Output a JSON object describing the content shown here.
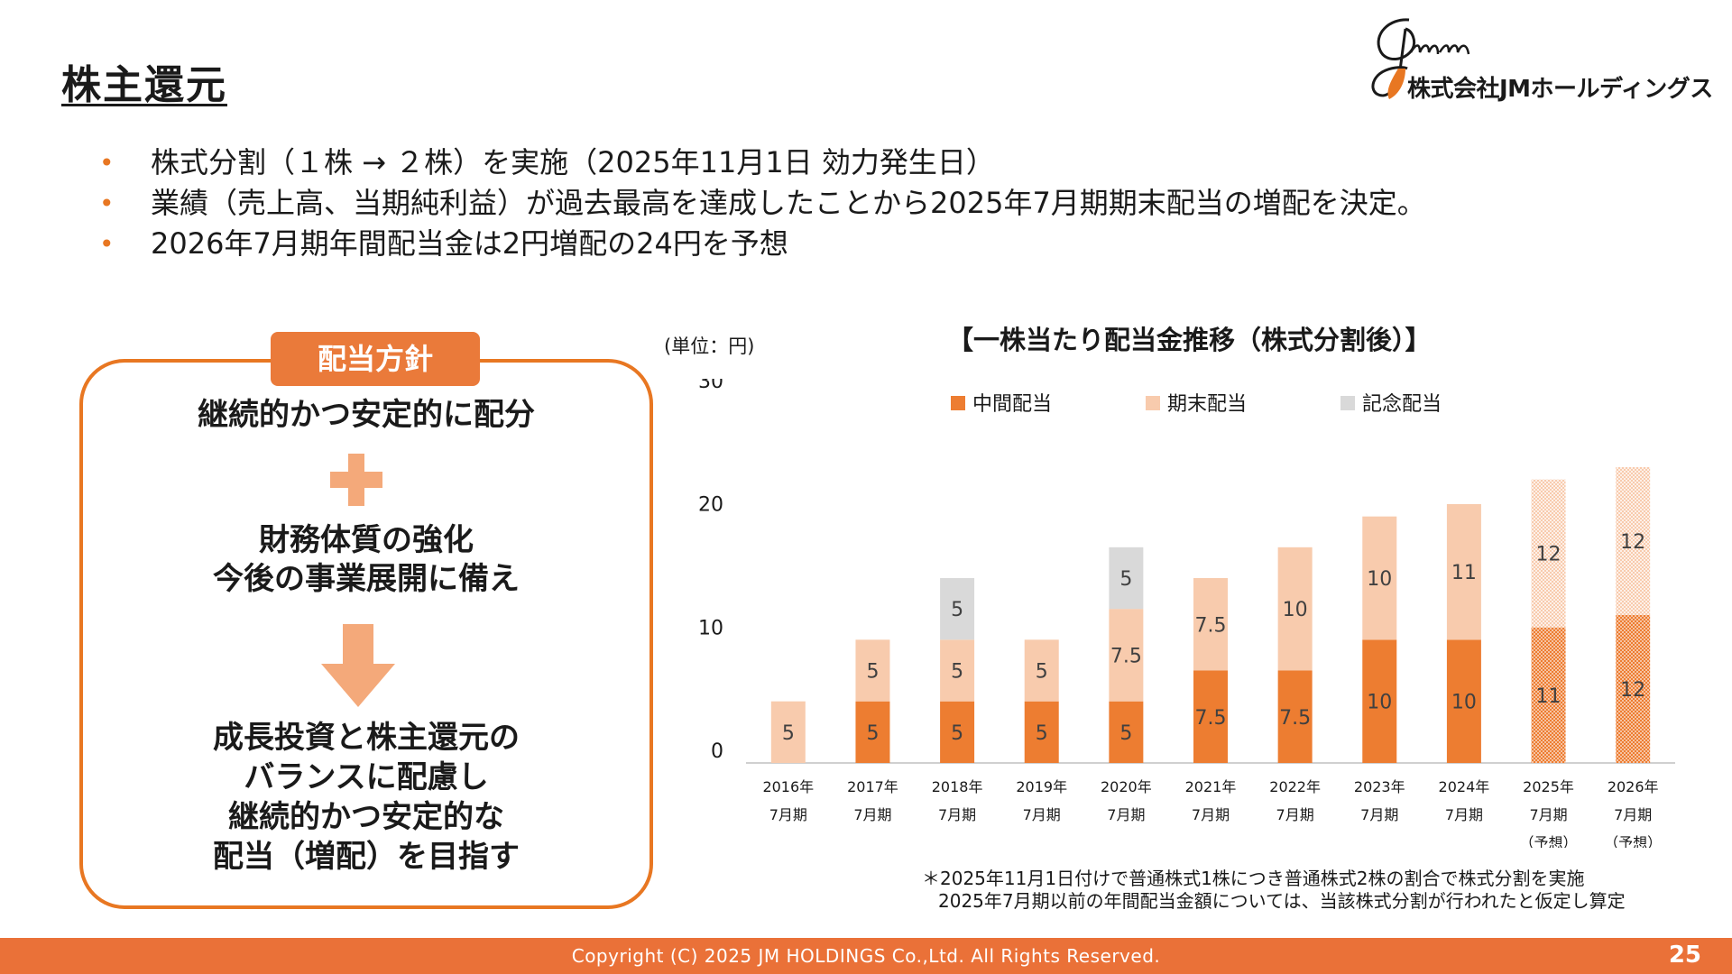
{
  "page": {
    "title": "株主還元",
    "logo_text": "株式会社JMホールディングス",
    "bullets": [
      "株式分割（１株 → ２株）を実施（2025年11月1日 効力発生日）",
      "業績（売上高、当期純利益）が過去最高を達成したことから2025年7月期期末配当の増配を決定。",
      "2026年7月期年間配当金は2円増配の24円を予想"
    ],
    "bullet_marker": "•",
    "footnote_line1": "＊2025年11月1日付けで普通株式1株につき普通株式2株の割合で株式分割を実施",
    "footnote_line2": "2025年7月期以前の年間配当金額については、当該株式分割が行われたと仮定し算定",
    "copyright": "Copyright (C) 2025 JM HOLDINGS Co.,Ltd. All Rights Reserved.",
    "page_number": "25"
  },
  "policy": {
    "tag": "配当方針",
    "line1": "継続的かつ安定的に配分",
    "line2": "財務体質の強化",
    "line3": "今後の事業展開に備え",
    "line4": "成長投資と株主還元の",
    "line5": "バランスに配慮し",
    "line6": "継続的かつ安定的な",
    "line7": "配当（増配）を目指す"
  },
  "colors": {
    "accent": "#e87722",
    "interim": "#ed7d31",
    "year_end": "#f8cbad",
    "commemorative": "#d9d9d9",
    "footer": "#ea7138"
  },
  "chart_data": {
    "type": "bar",
    "stacked": true,
    "title": "【一株当たり配当金推移（株式分割後）】",
    "unit_label": "(単位：円)",
    "ylim": [
      0,
      30
    ],
    "yticks": [
      0,
      10,
      20,
      30
    ],
    "grid": false,
    "legend_position": "top",
    "categories": [
      [
        "2016年",
        "7月期",
        ""
      ],
      [
        "2017年",
        "7月期",
        ""
      ],
      [
        "2018年",
        "7月期",
        ""
      ],
      [
        "2019年",
        "7月期",
        ""
      ],
      [
        "2020年",
        "7月期",
        ""
      ],
      [
        "2021年",
        "7月期",
        ""
      ],
      [
        "2022年",
        "7月期",
        ""
      ],
      [
        "2023年",
        "7月期",
        ""
      ],
      [
        "2024年",
        "7月期",
        ""
      ],
      [
        "2025年",
        "7月期",
        "（予想）"
      ],
      [
        "2026年",
        "7月期",
        "（予想）"
      ]
    ],
    "hatched_categories": [
      9,
      10
    ],
    "series": [
      {
        "name": "中間配当",
        "color": "#ed7d31",
        "values": [
          0,
          5,
          5,
          5,
          5,
          7.5,
          7.5,
          10,
          10,
          11,
          12
        ]
      },
      {
        "name": "期末配当",
        "color": "#f8cbad",
        "values": [
          5,
          5,
          5,
          5,
          7.5,
          7.5,
          10,
          10,
          11,
          12,
          12
        ]
      },
      {
        "name": "記念配当",
        "color": "#d9d9d9",
        "values": [
          0,
          0,
          5,
          0,
          5,
          0,
          0,
          0,
          0,
          0,
          0
        ]
      }
    ]
  }
}
